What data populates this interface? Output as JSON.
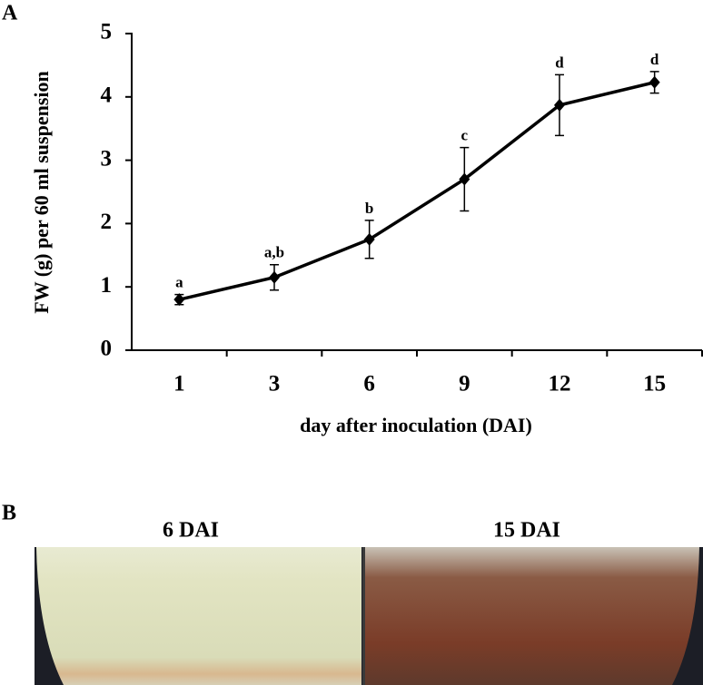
{
  "panel_labels": [
    "A",
    "B"
  ],
  "chart_data": {
    "type": "line",
    "categories": [
      "1",
      "3",
      "6",
      "9",
      "12",
      "15"
    ],
    "values": [
      0.8,
      1.15,
      1.75,
      2.7,
      3.87,
      4.23
    ],
    "errors": [
      0.08,
      0.2,
      0.3,
      0.5,
      0.48,
      0.17
    ],
    "annotations": [
      "a",
      "a,b",
      "b",
      "c",
      "d",
      "d"
    ],
    "color": "#000000",
    "ylim": [
      0,
      5
    ],
    "yticks": [
      0,
      1,
      2,
      3,
      4,
      5
    ],
    "xlabel": "day after inoculation  (DAI)",
    "ylabel": "FW (g) per 60 ml suspension"
  },
  "photo_labels": [
    "6 DAI",
    "15 DAI"
  ]
}
